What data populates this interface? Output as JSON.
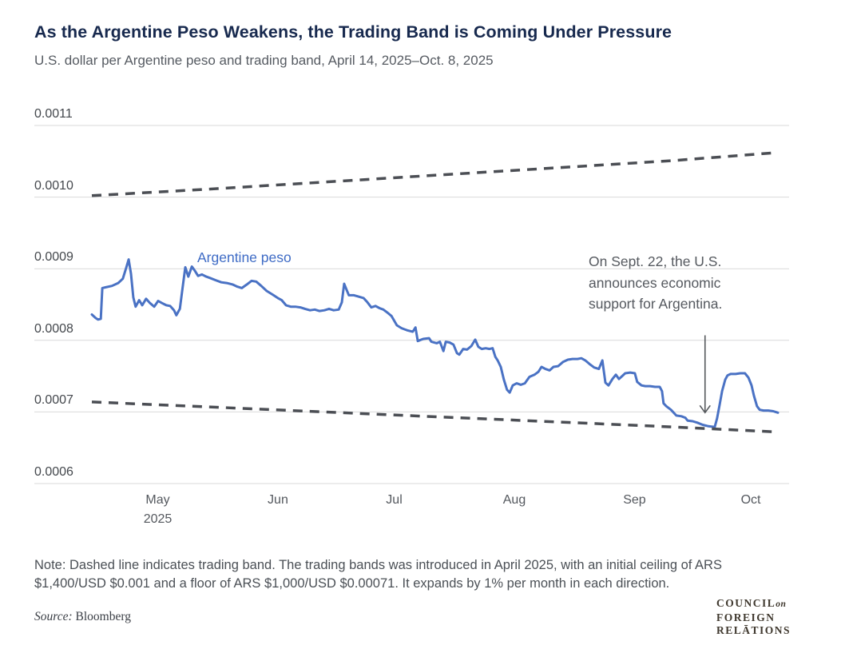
{
  "header": {
    "title": "As the Argentine Peso Weakens, the Trading Band is Coming Under Pressure",
    "subtitle": "U.S. dollar per Argentine peso and trading band, April 14, 2025–Oct. 8, 2025"
  },
  "colors": {
    "peso_line": "#4a72c4",
    "band_dashed": "#4b4e54",
    "gridline": "#d9d9da",
    "title_navy": "#17294e",
    "annotation_gray": "#55595f",
    "arrow_gray": "#55585c"
  },
  "chart_data": {
    "type": "line",
    "title": "As the Argentine Peso Weakens, the Trading Band is Coming Under Pressure",
    "subtitle": "U.S. dollar per Argentine peso and trading band, April 14, 2025–Oct. 8, 2025",
    "xlabel": "",
    "ylabel": "U.S. dollar per Argentine peso",
    "ylim": [
      0.0006,
      0.0011
    ],
    "x_start_date": "April 14, 2025",
    "x_end_date": "Oct. 8, 2025",
    "x_span_days": 177,
    "grid": "horizontal",
    "y_axis": {
      "ticks": [
        {
          "label": "0.0011",
          "value": 0.0011
        },
        {
          "label": "0.0010",
          "value": 0.001
        },
        {
          "label": "0.0009",
          "value": 0.0009
        },
        {
          "label": "0.0008",
          "value": 0.0008
        },
        {
          "label": "0.0007",
          "value": 0.0007
        },
        {
          "label": "0.0006",
          "value": 0.0006
        }
      ]
    },
    "x_axis": {
      "ticks": [
        {
          "label": "May",
          "year": "2025",
          "day": 17
        },
        {
          "label": "Jun",
          "day": 48
        },
        {
          "label": "Jul",
          "day": 78
        },
        {
          "label": "Aug",
          "day": 109
        },
        {
          "label": "Sep",
          "day": 140
        },
        {
          "label": "Oct",
          "day": 170
        }
      ]
    },
    "series_label": "Argentine peso",
    "series": [
      {
        "name": "Argentine peso",
        "style": "solid",
        "color": "#4a72c4",
        "width": 3,
        "points": [
          [
            0,
            0.000836
          ],
          [
            1.0,
            0.000831
          ],
          [
            1.6,
            0.000829
          ],
          [
            2.3,
            0.00083
          ],
          [
            2.7,
            0.000873
          ],
          [
            3.5,
            0.000874
          ],
          [
            5.2,
            0.000876
          ],
          [
            6.8,
            0.00088
          ],
          [
            8.0,
            0.000886
          ],
          [
            8.9,
            0.000902
          ],
          [
            9.5,
            0.000913
          ],
          [
            10.1,
            0.000893
          ],
          [
            10.7,
            0.00086
          ],
          [
            11.3,
            0.000847
          ],
          [
            12.2,
            0.000856
          ],
          [
            13.0,
            0.000849
          ],
          [
            14.0,
            0.000858
          ],
          [
            15.0,
            0.000852
          ],
          [
            16.1,
            0.000847
          ],
          [
            17.1,
            0.000855
          ],
          [
            18.1,
            0.000852
          ],
          [
            19.2,
            0.000849
          ],
          [
            20.2,
            0.000848
          ],
          [
            21.2,
            0.000842
          ],
          [
            21.8,
            0.000835
          ],
          [
            22.7,
            0.000844
          ],
          [
            23.3,
            0.000869
          ],
          [
            24.1,
            0.000902
          ],
          [
            24.9,
            0.000889
          ],
          [
            25.8,
            0.000903
          ],
          [
            26.6,
            0.000897
          ],
          [
            27.4,
            0.00089
          ],
          [
            28.4,
            0.000892
          ],
          [
            29.5,
            0.000889
          ],
          [
            30.5,
            0.000887
          ],
          [
            31.9,
            0.000884
          ],
          [
            33.4,
            0.000881
          ],
          [
            34.8,
            0.00088
          ],
          [
            36.3,
            0.000878
          ],
          [
            37.5,
            0.000875
          ],
          [
            38.7,
            0.000873
          ],
          [
            40.0,
            0.000878
          ],
          [
            41.2,
            0.000883
          ],
          [
            42.4,
            0.000882
          ],
          [
            43.7,
            0.000876
          ],
          [
            45.1,
            0.000869
          ],
          [
            46.6,
            0.000864
          ],
          [
            48.0,
            0.000859
          ],
          [
            49.0,
            0.000856
          ],
          [
            50.1,
            0.000849
          ],
          [
            51.3,
            0.000847
          ],
          [
            52.5,
            0.000847
          ],
          [
            53.8,
            0.000846
          ],
          [
            55.0,
            0.000844
          ],
          [
            56.3,
            0.000842
          ],
          [
            57.5,
            0.000843
          ],
          [
            58.7,
            0.000841
          ],
          [
            60.0,
            0.000842
          ],
          [
            61.2,
            0.000844
          ],
          [
            62.4,
            0.000842
          ],
          [
            63.7,
            0.000843
          ],
          [
            64.5,
            0.000853
          ],
          [
            65.1,
            0.000879
          ],
          [
            65.7,
            0.000871
          ],
          [
            66.3,
            0.000863
          ],
          [
            67.6,
            0.000863
          ],
          [
            68.8,
            0.000861
          ],
          [
            70.1,
            0.000859
          ],
          [
            71.1,
            0.000853
          ],
          [
            72.1,
            0.000846
          ],
          [
            73.2,
            0.000848
          ],
          [
            74.2,
            0.000845
          ],
          [
            75.2,
            0.000843
          ],
          [
            76.2,
            0.000839
          ],
          [
            77.3,
            0.000834
          ],
          [
            78.7,
            0.000821
          ],
          [
            79.9,
            0.000817
          ],
          [
            81.4,
            0.000814
          ],
          [
            82.8,
            0.000812
          ],
          [
            83.5,
            0.000818
          ],
          [
            84.1,
            0.000799
          ],
          [
            85.5,
            0.000802
          ],
          [
            87.0,
            0.000803
          ],
          [
            87.6,
            0.000798
          ],
          [
            89.0,
            0.000796
          ],
          [
            89.8,
            0.000798
          ],
          [
            90.7,
            0.000785
          ],
          [
            91.3,
            0.000798
          ],
          [
            92.3,
            0.000797
          ],
          [
            93.3,
            0.000794
          ],
          [
            94.2,
            0.000782
          ],
          [
            94.8,
            0.00078
          ],
          [
            95.8,
            0.000788
          ],
          [
            96.8,
            0.000787
          ],
          [
            97.9,
            0.000792
          ],
          [
            98.9,
            0.000801
          ],
          [
            99.7,
            0.000791
          ],
          [
            100.6,
            0.000788
          ],
          [
            101.6,
            0.000789
          ],
          [
            102.6,
            0.000788
          ],
          [
            103.4,
            0.000789
          ],
          [
            104.1,
            0.000777
          ],
          [
            104.7,
            0.000772
          ],
          [
            105.5,
            0.000763
          ],
          [
            106.3,
            0.000745
          ],
          [
            107.1,
            0.000731
          ],
          [
            107.8,
            0.000727
          ],
          [
            108.6,
            0.000737
          ],
          [
            109.6,
            0.00074
          ],
          [
            110.7,
            0.000738
          ],
          [
            111.7,
            0.00074
          ],
          [
            112.9,
            0.000749
          ],
          [
            114.2,
            0.000752
          ],
          [
            115.2,
            0.000756
          ],
          [
            116.0,
            0.000763
          ],
          [
            117.0,
            0.00076
          ],
          [
            118.1,
            0.000758
          ],
          [
            119.1,
            0.000763
          ],
          [
            120.3,
            0.000764
          ],
          [
            121.6,
            0.00077
          ],
          [
            122.8,
            0.000773
          ],
          [
            124.0,
            0.000774
          ],
          [
            125.3,
            0.000774
          ],
          [
            126.3,
            0.000775
          ],
          [
            127.3,
            0.000772
          ],
          [
            128.4,
            0.000767
          ],
          [
            129.6,
            0.000762
          ],
          [
            130.8,
            0.00076
          ],
          [
            131.7,
            0.000772
          ],
          [
            132.5,
            0.000741
          ],
          [
            133.3,
            0.000737
          ],
          [
            134.3,
            0.000746
          ],
          [
            135.2,
            0.000752
          ],
          [
            136.0,
            0.000746
          ],
          [
            136.8,
            0.00075
          ],
          [
            137.6,
            0.000754
          ],
          [
            138.9,
            0.000755
          ],
          [
            140.1,
            0.000754
          ],
          [
            140.7,
            0.000742
          ],
          [
            141.8,
            0.000737
          ],
          [
            142.8,
            0.000736
          ],
          [
            144.0,
            0.000736
          ],
          [
            145.3,
            0.000735
          ],
          [
            146.5,
            0.000735
          ],
          [
            147.1,
            0.000729
          ],
          [
            147.5,
            0.000712
          ],
          [
            148.2,
            0.000708
          ],
          [
            149.4,
            0.000703
          ],
          [
            150.8,
            0.000695
          ],
          [
            152.1,
            0.000694
          ],
          [
            153.1,
            0.000692
          ],
          [
            153.7,
            0.000688
          ],
          [
            155.0,
            0.000687
          ],
          [
            156.2,
            0.000685
          ],
          [
            157.6,
            0.000682
          ],
          [
            159.1,
            0.00068
          ],
          [
            160.7,
            0.000679
          ],
          [
            161.3,
            0.000691
          ],
          [
            162.0,
            0.000711
          ],
          [
            162.6,
            0.000729
          ],
          [
            163.4,
            0.000745
          ],
          [
            164.0,
            0.000751
          ],
          [
            164.8,
            0.000753
          ],
          [
            166.1,
            0.000753
          ],
          [
            167.3,
            0.000754
          ],
          [
            168.5,
            0.000754
          ],
          [
            169.4,
            0.000748
          ],
          [
            170.2,
            0.000737
          ],
          [
            170.8,
            0.000723
          ],
          [
            171.6,
            0.000708
          ],
          [
            172.3,
            0.000703
          ],
          [
            173.3,
            0.000702
          ],
          [
            174.5,
            0.000702
          ],
          [
            175.8,
            0.000701
          ],
          [
            176.4,
            0.0007
          ],
          [
            177,
            0.000699
          ]
        ]
      },
      {
        "name": "Trading band ceiling",
        "style": "dashed",
        "color": "#4b4e54",
        "width": 3.5,
        "points": [
          [
            0,
            0.001002
          ],
          [
            30,
            0.001011
          ],
          [
            60,
            0.001021
          ],
          [
            90,
            0.001031
          ],
          [
            120,
            0.001041
          ],
          [
            150,
            0.001051
          ],
          [
            176.5,
            0.001062
          ]
        ]
      },
      {
        "name": "Trading band floor",
        "style": "dashed",
        "color": "#4b4e54",
        "width": 3.5,
        "points": [
          [
            0,
            0.000714
          ],
          [
            30,
            0.000707
          ],
          [
            60,
            0.0007
          ],
          [
            90,
            0.000693
          ],
          [
            120,
            0.000686
          ],
          [
            150,
            0.000679
          ],
          [
            177,
            0.000672
          ]
        ]
      }
    ],
    "annotation": {
      "lines": [
        "On Sept. 22, the U.S.",
        "announces economic",
        "support for Argentina."
      ],
      "arrow_day": 158.2,
      "arrow_top_value": 0.000807,
      "arrow_tip_value": 0.000699
    }
  },
  "footer": {
    "note": "Note: Dashed line indicates trading band. The trading bands was introduced in April 2025, with an initial ceiling of ARS $1,400/USD $0.001 and a floor of ARS $1,000/USD $0.00071. It expands by 1% per month in each direction.",
    "source_label": "Source:",
    "source_value": "Bloomberg",
    "logo": {
      "word1": "COUNCIL",
      "word1_suffix": "on",
      "word2": "FOREIGN",
      "word3": "RELĀTIONS"
    }
  }
}
